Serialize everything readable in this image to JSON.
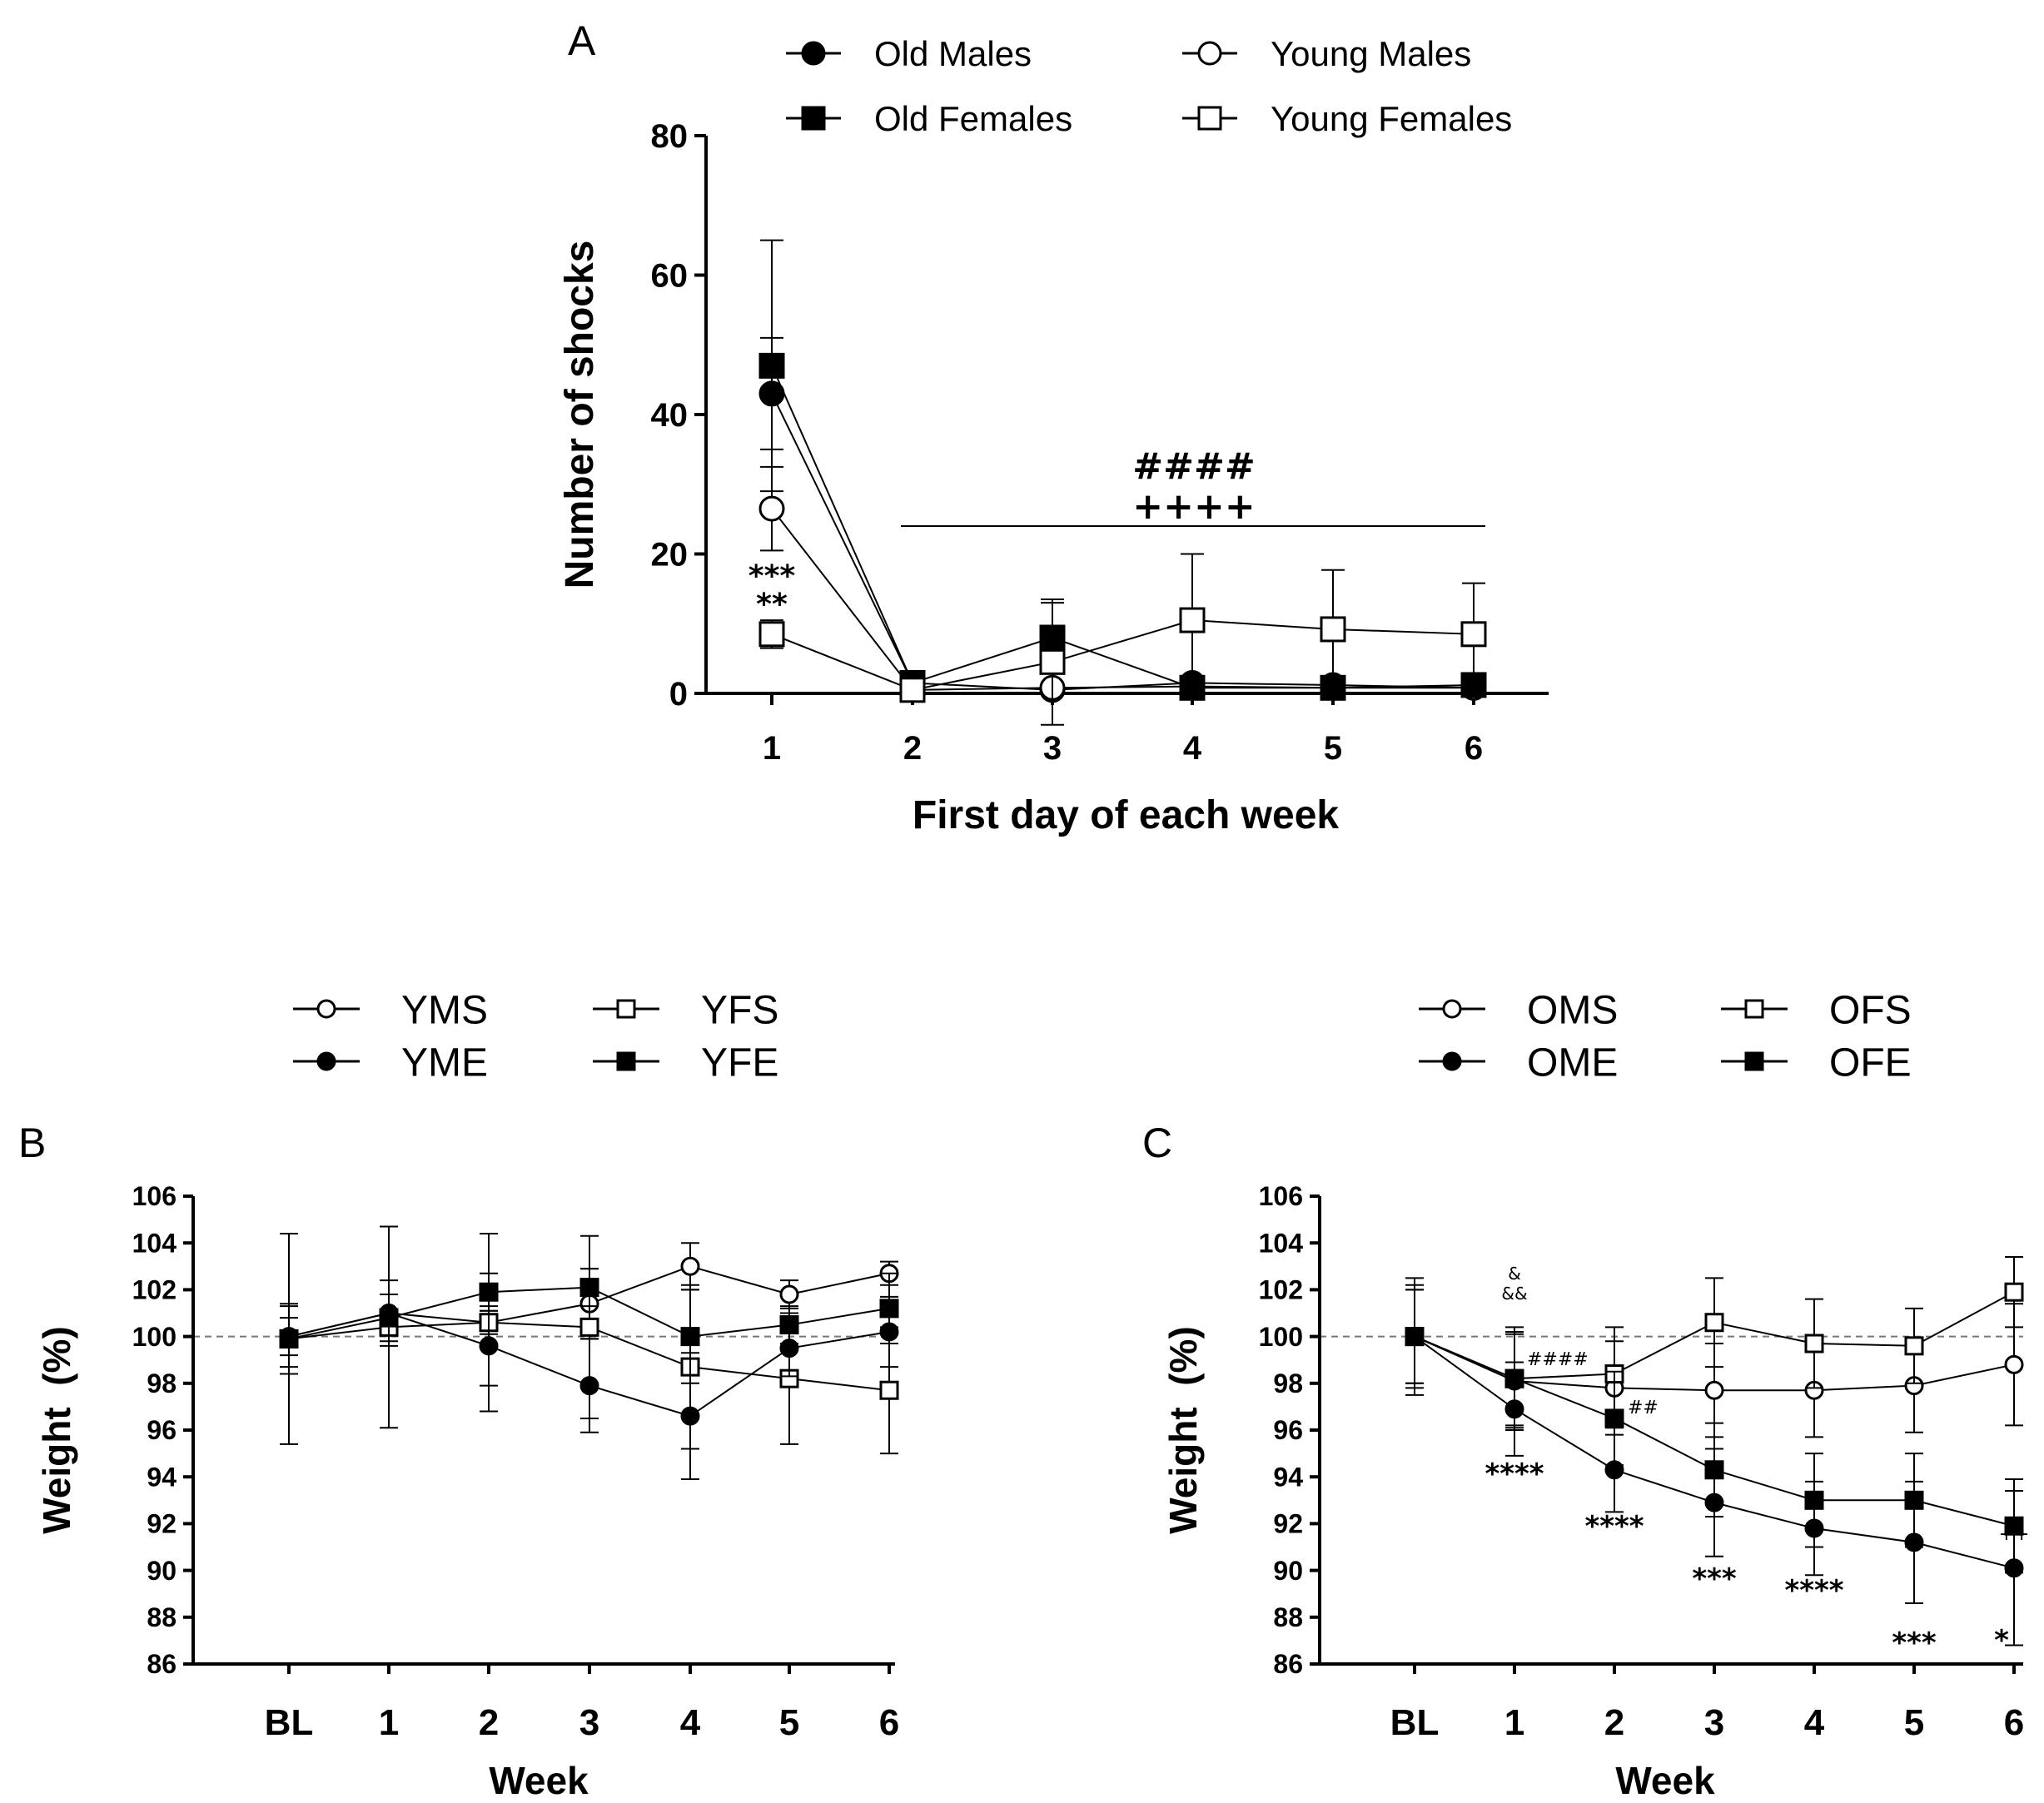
{
  "chart_data": [
    {
      "panel": "A",
      "type": "line",
      "xlabel": "First day of each week",
      "ylabel": "Number of shocks",
      "categories": [
        "1",
        "2",
        "3",
        "4",
        "5",
        "6"
      ],
      "ylim": [
        0,
        80
      ],
      "yticks": [
        "0",
        "20",
        "40",
        "60",
        "80"
      ],
      "legend_position": "top",
      "series": [
        {
          "name": "Old Males",
          "marker": "circle",
          "fill": "filled",
          "values": [
            43,
            1.5,
            0.5,
            1.5,
            1.2,
            0.8
          ],
          "errors": [
            8,
            0.5,
            0.5,
            0.6,
            0.5,
            0.5
          ]
        },
        {
          "name": "Young Males",
          "marker": "circle",
          "fill": "open",
          "values": [
            26.5,
            0.5,
            0.8,
            1,
            0.8,
            0.8
          ],
          "errors": [
            6,
            0.5,
            0.5,
            0.5,
            0.5,
            0.5
          ]
        },
        {
          "name": "Old Females",
          "marker": "square",
          "fill": "filled",
          "values": [
            47,
            1.5,
            8,
            0.8,
            0.8,
            1.2
          ],
          "errors": [
            18,
            0.5,
            5,
            0.5,
            0.5,
            0.5
          ]
        },
        {
          "name": "Young Females",
          "marker": "square",
          "fill": "open",
          "values": [
            8.5,
            0.5,
            4.5,
            10.5,
            9.2,
            8.5
          ],
          "errors": [
            2,
            0.5,
            9,
            9.5,
            8.5,
            7.3
          ]
        }
      ],
      "annotations": {
        "week1_upper": "***",
        "week1_lower": "**",
        "hash": "####",
        "plus": "++++"
      }
    },
    {
      "panel": "B",
      "type": "line",
      "xlabel": "Week",
      "ylabel": "Weight  (%)",
      "categories": [
        "BL",
        "1",
        "2",
        "3",
        "4",
        "5",
        "6"
      ],
      "ylim": [
        86,
        106
      ],
      "yticks": [
        "86",
        "88",
        "90",
        "92",
        "94",
        "96",
        "98",
        "100",
        "102",
        "104",
        "106"
      ],
      "reference_line": 100,
      "legend_position": "top",
      "series": [
        {
          "name": "YMS",
          "marker": "circle",
          "fill": "open",
          "values": [
            100,
            101,
            100.6,
            101.4,
            103,
            101.8,
            102.7
          ],
          "errors": [
            0.8,
            0.8,
            0.5,
            1.5,
            1.0,
            0.6,
            0.5
          ]
        },
        {
          "name": "YFS",
          "marker": "square",
          "fill": "open",
          "values": [
            99.9,
            100.4,
            100.6,
            100.4,
            98.7,
            98.2,
            97.7
          ],
          "errors": [
            4.5,
            4.3,
            3.8,
            3.9,
            3.5,
            2.8,
            2.7
          ]
        },
        {
          "name": "YME",
          "marker": "circle",
          "fill": "filled",
          "values": [
            100,
            101,
            99.6,
            97.9,
            96.6,
            99.5,
            100.2
          ],
          "errors": [
            1.3,
            1.4,
            1.7,
            2.0,
            2.7,
            1.2,
            1.5
          ]
        },
        {
          "name": "YFE",
          "marker": "square",
          "fill": "filled",
          "values": [
            99.9,
            100.8,
            101.9,
            102.1,
            100,
            100.5,
            101.2
          ],
          "errors": [
            1.5,
            1.0,
            0.8,
            0.8,
            2.0,
            0.8,
            1.5
          ]
        }
      ]
    },
    {
      "panel": "C",
      "type": "line",
      "xlabel": "Week",
      "ylabel": "Weight  (%)",
      "categories": [
        "BL",
        "1",
        "2",
        "3",
        "4",
        "5",
        "6"
      ],
      "ylim": [
        86,
        106
      ],
      "yticks": [
        "86",
        "88",
        "90",
        "92",
        "94",
        "96",
        "98",
        "100",
        "102",
        "104",
        "106"
      ],
      "reference_line": 100,
      "legend_position": "top",
      "series": [
        {
          "name": "OMS",
          "marker": "circle",
          "fill": "open",
          "values": [
            100,
            98.1,
            97.8,
            97.7,
            97.7,
            97.9,
            98.8
          ],
          "errors": [
            2.0,
            2.0,
            2.0,
            2.0,
            2.0,
            2.0,
            2.6
          ]
        },
        {
          "name": "OFS",
          "marker": "square",
          "fill": "open",
          "values": [
            100,
            98.2,
            98.4,
            100.6,
            99.7,
            99.6,
            101.9
          ],
          "errors": [
            2.5,
            2.2,
            2.0,
            1.9,
            1.9,
            1.6,
            1.5
          ]
        },
        {
          "name": "OME",
          "marker": "circle",
          "fill": "filled",
          "values": [
            100,
            96.9,
            94.3,
            92.9,
            91.8,
            91.2,
            90.1
          ],
          "errors": [
            2.2,
            2.0,
            1.8,
            2.3,
            2.0,
            2.6,
            3.3
          ]
        },
        {
          "name": "OFE",
          "marker": "square",
          "fill": "filled",
          "values": [
            100,
            98.2,
            96.5,
            94.3,
            93,
            93,
            91.9
          ],
          "errors": [
            2.0,
            2.0,
            2.0,
            2.0,
            2.0,
            2.0,
            2.0
          ]
        }
      ],
      "annotations": {
        "amp1": "&",
        "amp2": "&&",
        "hash_w1": "####",
        "hash_w2": "##",
        "plus_w6": "++",
        "stars": [
          "****",
          "****",
          "***",
          "****",
          "***",
          "*"
        ]
      }
    }
  ]
}
